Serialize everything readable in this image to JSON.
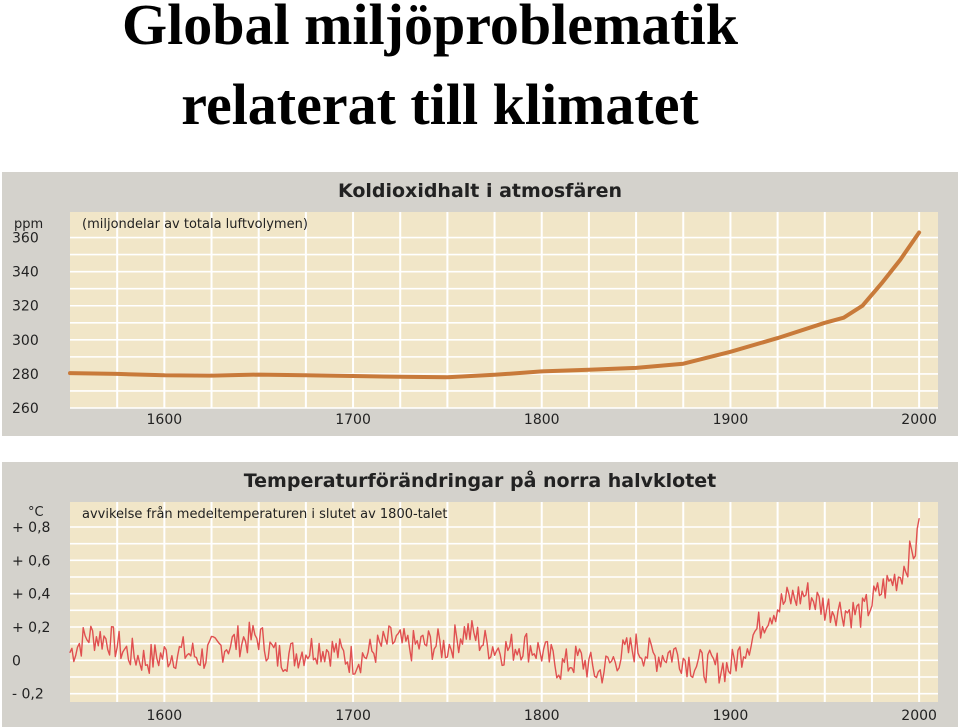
{
  "slide": {
    "title_line1": "Global miljöproblematik",
    "title_line2": "relaterat till klimatet"
  },
  "colors": {
    "panel_bg": "#d4d2cc",
    "plot_bg": "#f1e6c8",
    "grid": "#ffffff",
    "co2_line": "#c87a3a",
    "temp_line": "#e05050"
  },
  "chart_data": [
    {
      "type": "line",
      "title": "Koldioxidhalt i atmosfären",
      "subtitle": "(miljondelar av totala luftvolymen)",
      "ylabel": "ppm",
      "xlim": [
        1550,
        2010
      ],
      "ylim": [
        260,
        375
      ],
      "x_ticks": [
        "1600",
        "1700",
        "1800",
        "1900",
        "2000"
      ],
      "y_ticks": [
        "360",
        "340",
        "320",
        "300",
        "280",
        "260"
      ],
      "grid": true,
      "series": [
        {
          "x": [
            1550,
            1575,
            1600,
            1625,
            1650,
            1675,
            1700,
            1725,
            1750,
            1775,
            1800,
            1825,
            1850,
            1875,
            1900,
            1925,
            1950,
            1960,
            1970,
            1980,
            1990,
            2000
          ],
          "values": [
            280.5,
            280,
            279.2,
            279,
            279.6,
            279.2,
            278.8,
            278.3,
            278,
            279.5,
            281.5,
            282.5,
            283.5,
            286,
            293,
            301,
            310,
            313,
            320,
            333,
            347,
            363
          ]
        }
      ]
    },
    {
      "type": "line",
      "title": "Temperaturförändringar på norra halvklotet",
      "subtitle": "avvikelse från medeltemperaturen i slutet av 1800-talet",
      "ylabel": "°C",
      "xlim": [
        1550,
        2010
      ],
      "ylim": [
        -0.25,
        0.95
      ],
      "x_ticks": [
        "1600",
        "1700",
        "1800",
        "1900",
        "2000"
      ],
      "y_ticks": [
        "+ 0,8",
        "+ 0,6",
        "+ 0,4",
        "+ 0,2",
        "0",
        "- 0,2"
      ],
      "grid": true,
      "series": [
        {
          "anchors_x": [
            1550,
            1560,
            1570,
            1580,
            1590,
            1600,
            1610,
            1620,
            1630,
            1640,
            1650,
            1660,
            1670,
            1680,
            1690,
            1700,
            1710,
            1720,
            1730,
            1740,
            1750,
            1760,
            1770,
            1780,
            1790,
            1800,
            1810,
            1820,
            1830,
            1840,
            1850,
            1860,
            1870,
            1880,
            1890,
            1900,
            1910,
            1920,
            1930,
            1940,
            1950,
            1960,
            1970,
            1980,
            1990,
            2000
          ],
          "anchors_y": [
            0.05,
            0.15,
            0.13,
            0.05,
            0.0,
            0.03,
            0.05,
            0.02,
            0.08,
            0.12,
            0.14,
            0.02,
            0.04,
            0.08,
            0.06,
            0.0,
            0.05,
            0.12,
            0.08,
            0.1,
            0.08,
            0.18,
            0.1,
            0.06,
            0.1,
            0.05,
            -0.04,
            0.01,
            -0.08,
            0.02,
            0.08,
            0.02,
            0.05,
            -0.02,
            -0.04,
            -0.04,
            0.12,
            0.28,
            0.36,
            0.4,
            0.32,
            0.3,
            0.28,
            0.42,
            0.52,
            0.72
          ],
          "noise_amplitude": 0.1
        }
      ]
    }
  ]
}
